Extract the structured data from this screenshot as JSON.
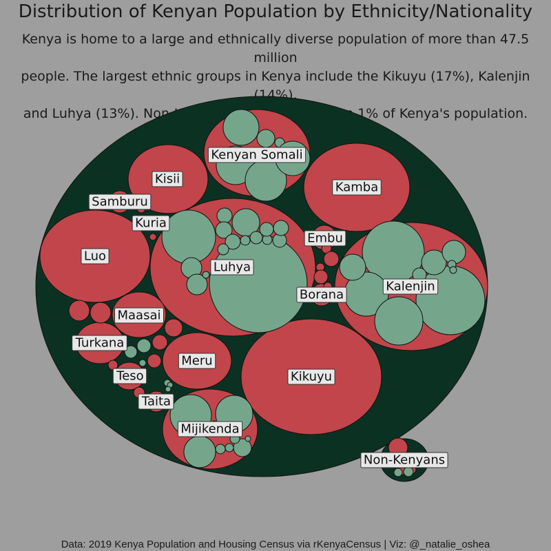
{
  "title": "Distribution of Kenyan Population by Ethnicity/Nationality",
  "subtitle_lines": [
    "Kenya is home to a large and ethnically diverse population of more than 47.5 million",
    "people. The largest ethnic groups in Kenya include the Kikuyu (17%), Kalenjin (14%),",
    "and Luhya (13%). Non-Kenyans make up less than 1% of Kenya's population."
  ],
  "caption": "Data: 2019 Kenya Population and Housing Census via rKenyaCensus | Viz: @_natalie_oshea",
  "colors": {
    "background": "#9e9e9e",
    "outer": "#0b3122",
    "group": "#c1454a",
    "subgroup": "#75a68c",
    "stroke": "#111111",
    "label_bg": "#e8e8e8"
  },
  "chart_data": {
    "type": "circle_packing",
    "labels": [
      "Kenyan Somali",
      "Kisii",
      "Kamba",
      "Samburu",
      "Kuria",
      "Luo",
      "Embu",
      "Luhya",
      "Borana",
      "Kalenjin",
      "Maasai",
      "Turkana",
      "Meru",
      "Kikuyu",
      "Teso",
      "Taita",
      "Mijikenda",
      "Non-Kenyans"
    ]
  }
}
